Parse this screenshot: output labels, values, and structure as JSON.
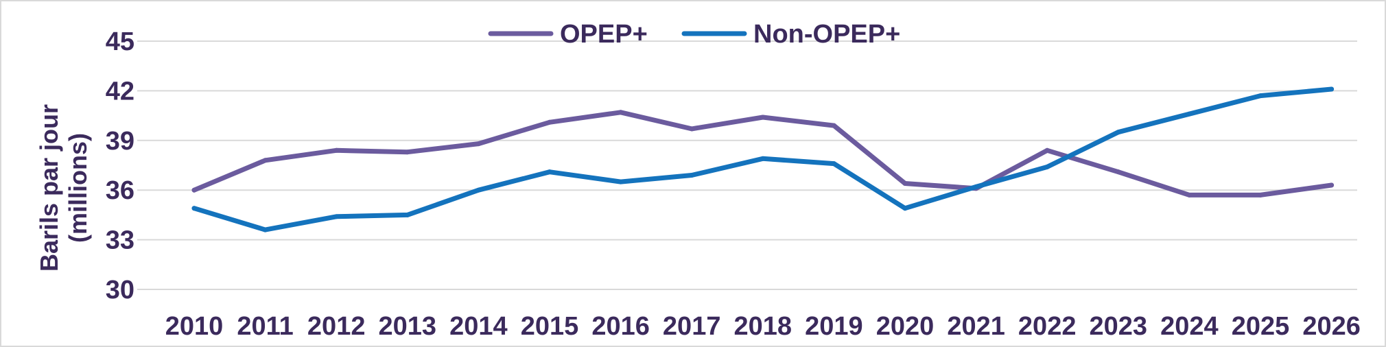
{
  "chart_data": {
    "type": "line",
    "title": "",
    "xlabel": "",
    "ylabel_line1": "Barils par jour",
    "ylabel_line2": "(millions)",
    "ylim": [
      30,
      45
    ],
    "yticks": [
      "30",
      "33",
      "36",
      "39",
      "42",
      "45"
    ],
    "grid": true,
    "legend_position": "top-center",
    "categories": [
      "2010",
      "2011",
      "2012",
      "2013",
      "2014",
      "2015",
      "2016",
      "2017",
      "2018",
      "2019",
      "2020",
      "2021",
      "2022",
      "2023",
      "2024",
      "2025",
      "2026"
    ],
    "series": [
      {
        "name": "OPEP+",
        "color": "#6b5b9e",
        "values": [
          36.0,
          37.8,
          38.4,
          38.3,
          38.8,
          40.1,
          40.7,
          39.7,
          40.4,
          39.9,
          36.4,
          36.1,
          38.4,
          37.1,
          35.7,
          35.7,
          36.3
        ]
      },
      {
        "name": "Non-OPEP+",
        "color": "#1473bd",
        "values": [
          34.9,
          33.6,
          34.4,
          34.5,
          36.0,
          37.1,
          36.5,
          36.9,
          37.9,
          37.6,
          34.9,
          36.2,
          37.4,
          39.5,
          40.6,
          41.7,
          42.1
        ]
      }
    ]
  }
}
